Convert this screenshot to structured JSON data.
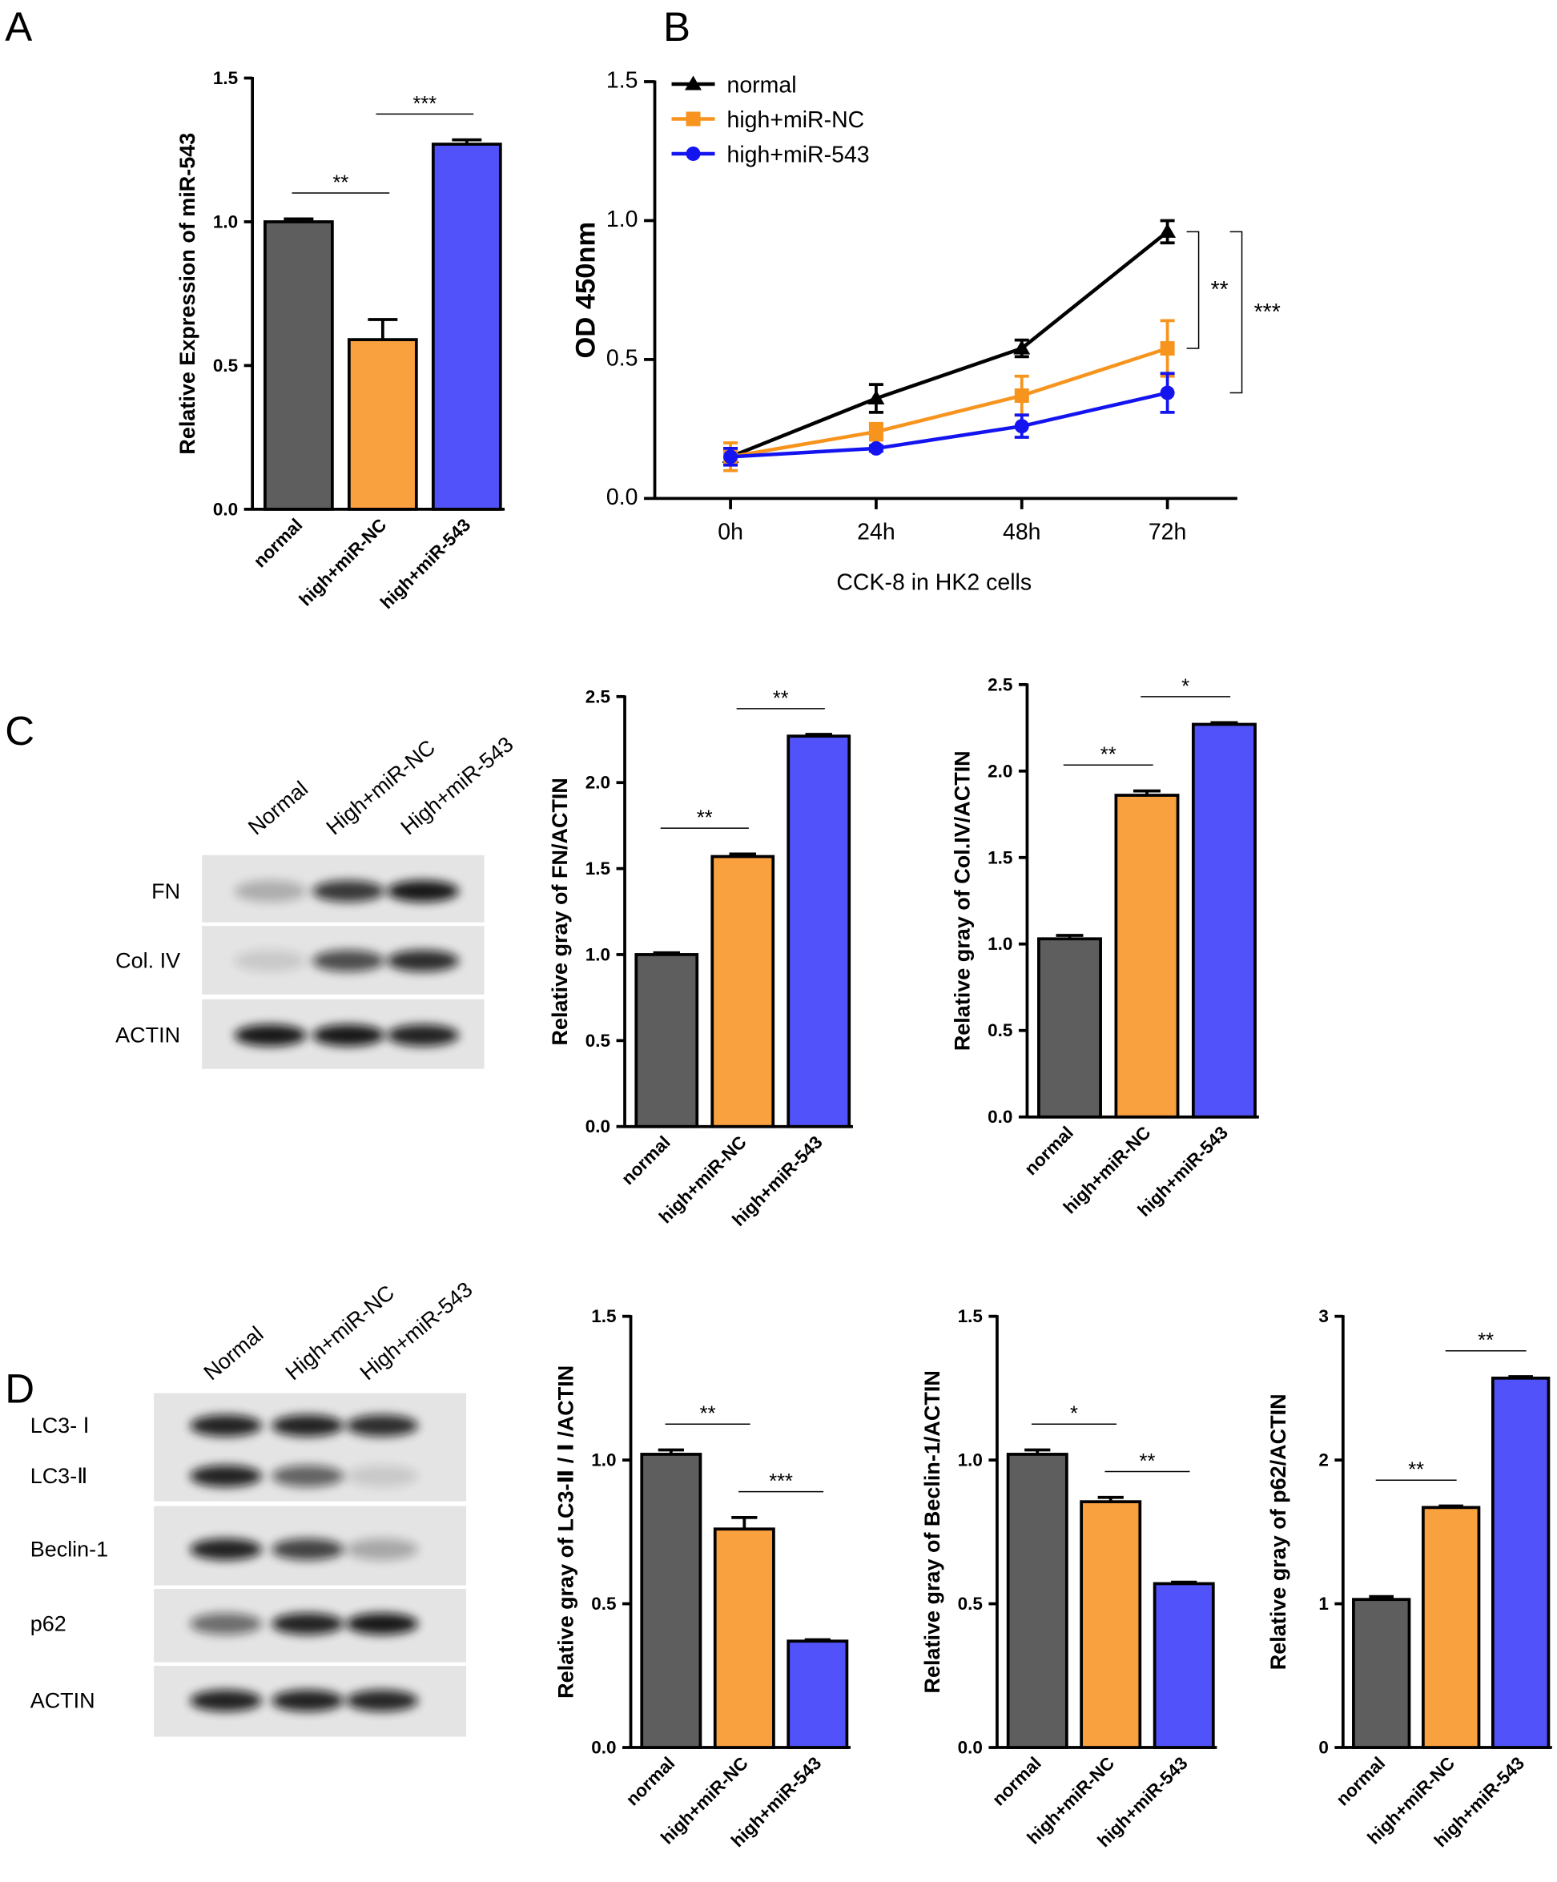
{
  "panel_labels": [
    "A",
    "B",
    "C",
    "D"
  ],
  "blots": [
    {
      "lanes": [
        "Normal",
        "High+miR-NC",
        "High+miR-543"
      ],
      "rows": [
        "FN",
        "Col. IV",
        "ACTIN"
      ]
    },
    {
      "lanes": [
        "Normal",
        "High+miR-NC",
        "High+miR-543"
      ],
      "rows": [
        "LC3- Ⅰ",
        "LC3-Ⅱ",
        "Beclin-1",
        "p62",
        "ACTIN"
      ]
    }
  ],
  "chart_data": [
    {
      "type": "bar",
      "ylabel": "Relative Expression of miR-543",
      "categories": [
        "normal",
        "high+miR-NC",
        "high+miR-543"
      ],
      "values": [
        1.0,
        0.59,
        1.27
      ],
      "errors": [
        0.01,
        0.07,
        0.015
      ],
      "colors": [
        "#5e5e5e",
        "#f9a03f",
        "#5252fa"
      ],
      "ylim": [
        0,
        1.5
      ],
      "yticks": [
        {
          "value": 0,
          "label": "0.0"
        },
        {
          "value": 0.5,
          "label": "0.5"
        },
        {
          "value": 1,
          "label": "1.0"
        },
        {
          "value": 1.5,
          "label": "1.5"
        }
      ],
      "annotations": [
        {
          "text": "**",
          "pair": [
            0,
            1
          ]
        },
        {
          "text": "***",
          "pair": [
            1,
            2
          ]
        }
      ]
    },
    {
      "type": "line",
      "xlabel": "CCK-8 in HK2 cells",
      "ylabel": "OD 450nm",
      "categories": [
        "0h",
        "24h",
        "48h",
        "72h"
      ],
      "series": [
        {
          "name": "normal",
          "color": "#000000",
          "marker": "triangle",
          "values": [
            0.15,
            0.36,
            0.54,
            0.96
          ],
          "errors": [
            0.02,
            0.05,
            0.03,
            0.04
          ]
        },
        {
          "name": "high+miR-NC",
          "color": "#f7941d",
          "marker": "square",
          "values": [
            0.15,
            0.24,
            0.37,
            0.54
          ],
          "errors": [
            0.05,
            0.03,
            0.07,
            0.1
          ]
        },
        {
          "name": "high+miR-543",
          "color": "#1414f0",
          "marker": "circle",
          "values": [
            0.15,
            0.18,
            0.26,
            0.38
          ],
          "errors": [
            0.03,
            0.01,
            0.04,
            0.07
          ]
        }
      ],
      "ylim": [
        0,
        1.5
      ],
      "yticks": [
        {
          "value": 0,
          "label": "0.0"
        },
        {
          "value": 0.5,
          "label": "0.5"
        },
        {
          "value": 1,
          "label": "1.0"
        },
        {
          "value": 1.5,
          "label": "1.5"
        }
      ],
      "legend": "upper left",
      "annotations": [
        {
          "text": "**",
          "series": [
            0,
            1
          ]
        },
        {
          "text": "***",
          "series": [
            0,
            2
          ]
        }
      ]
    },
    {
      "type": "bar",
      "ylabel": "Relative gray of FN/ACTIN",
      "categories": [
        "normal",
        "high+miR-NC",
        "high+miR-543"
      ],
      "values": [
        1.0,
        1.57,
        2.27
      ],
      "errors": [
        0.01,
        0.015,
        0.01
      ],
      "colors": [
        "#5e5e5e",
        "#f9a03f",
        "#5252fa"
      ],
      "ylim": [
        0,
        2.5
      ],
      "yticks": [
        {
          "value": 0,
          "label": "0.0"
        },
        {
          "value": 0.5,
          "label": "0.5"
        },
        {
          "value": 1,
          "label": "1.0"
        },
        {
          "value": 1.5,
          "label": "1.5"
        },
        {
          "value": 2,
          "label": "2.0"
        },
        {
          "value": 2.5,
          "label": "2.5"
        }
      ],
      "annotations": [
        {
          "text": "**",
          "pair": [
            0,
            1
          ]
        },
        {
          "text": "**",
          "pair": [
            1,
            2
          ]
        }
      ]
    },
    {
      "type": "bar",
      "ylabel": "Relative gray of Col.IV/ACTIN",
      "categories": [
        "normal",
        "high+miR-NC",
        "high+miR-543"
      ],
      "values": [
        1.03,
        1.86,
        2.27
      ],
      "errors": [
        0.02,
        0.025,
        0.01
      ],
      "colors": [
        "#5e5e5e",
        "#f9a03f",
        "#5252fa"
      ],
      "ylim": [
        0,
        2.5
      ],
      "yticks": [
        {
          "value": 0,
          "label": "0.0"
        },
        {
          "value": 0.5,
          "label": "0.5"
        },
        {
          "value": 1,
          "label": "1.0"
        },
        {
          "value": 1.5,
          "label": "1.5"
        },
        {
          "value": 2,
          "label": "2.0"
        },
        {
          "value": 2.5,
          "label": "2.5"
        }
      ],
      "annotations": [
        {
          "text": "**",
          "pair": [
            0,
            1
          ]
        },
        {
          "text": "*",
          "pair": [
            1,
            2
          ]
        }
      ]
    },
    {
      "type": "bar",
      "ylabel": "Relative gray of LC3-Ⅱ / Ⅰ /ACTIN",
      "categories": [
        "normal",
        "high+miR-NC",
        "high+miR-543"
      ],
      "values": [
        1.02,
        0.76,
        0.37
      ],
      "errors": [
        0.015,
        0.04,
        0.005
      ],
      "colors": [
        "#5e5e5e",
        "#f9a03f",
        "#5252fa"
      ],
      "ylim": [
        0,
        1.5
      ],
      "yticks": [
        {
          "value": 0,
          "label": "0.0"
        },
        {
          "value": 0.5,
          "label": "0.5"
        },
        {
          "value": 1,
          "label": "1.0"
        },
        {
          "value": 1.5,
          "label": "1.5"
        }
      ],
      "annotations": [
        {
          "text": "**",
          "pair": [
            0,
            1
          ]
        },
        {
          "text": "***",
          "pair": [
            1,
            2
          ]
        }
      ]
    },
    {
      "type": "bar",
      "ylabel": "Relative gray of Beclin-1/ACTIN",
      "categories": [
        "normal",
        "high+miR-NC",
        "high+miR-543"
      ],
      "values": [
        1.02,
        0.855,
        0.57
      ],
      "errors": [
        0.015,
        0.015,
        0.005
      ],
      "colors": [
        "#5e5e5e",
        "#f9a03f",
        "#5252fa"
      ],
      "ylim": [
        0,
        1.5
      ],
      "yticks": [
        {
          "value": 0,
          "label": "0.0"
        },
        {
          "value": 0.5,
          "label": "0.5"
        },
        {
          "value": 1,
          "label": "1.0"
        },
        {
          "value": 1.5,
          "label": "1.5"
        }
      ],
      "annotations": [
        {
          "text": "*",
          "pair": [
            0,
            1
          ]
        },
        {
          "text": "**",
          "pair": [
            1,
            2
          ]
        }
      ]
    },
    {
      "type": "bar",
      "ylabel": "Relative gray of p62/ACTIN",
      "categories": [
        "normal",
        "high+miR-NC",
        "high+miR-543"
      ],
      "values": [
        1.03,
        1.67,
        2.57
      ],
      "errors": [
        0.02,
        0.01,
        0.01
      ],
      "colors": [
        "#5e5e5e",
        "#f9a03f",
        "#5252fa"
      ],
      "ylim": [
        0,
        3
      ],
      "yticks": [
        0,
        1,
        2,
        3
      ],
      "annotations": [
        {
          "text": "**",
          "pair": [
            0,
            1
          ]
        },
        {
          "text": "**",
          "pair": [
            1,
            2
          ]
        }
      ]
    }
  ]
}
